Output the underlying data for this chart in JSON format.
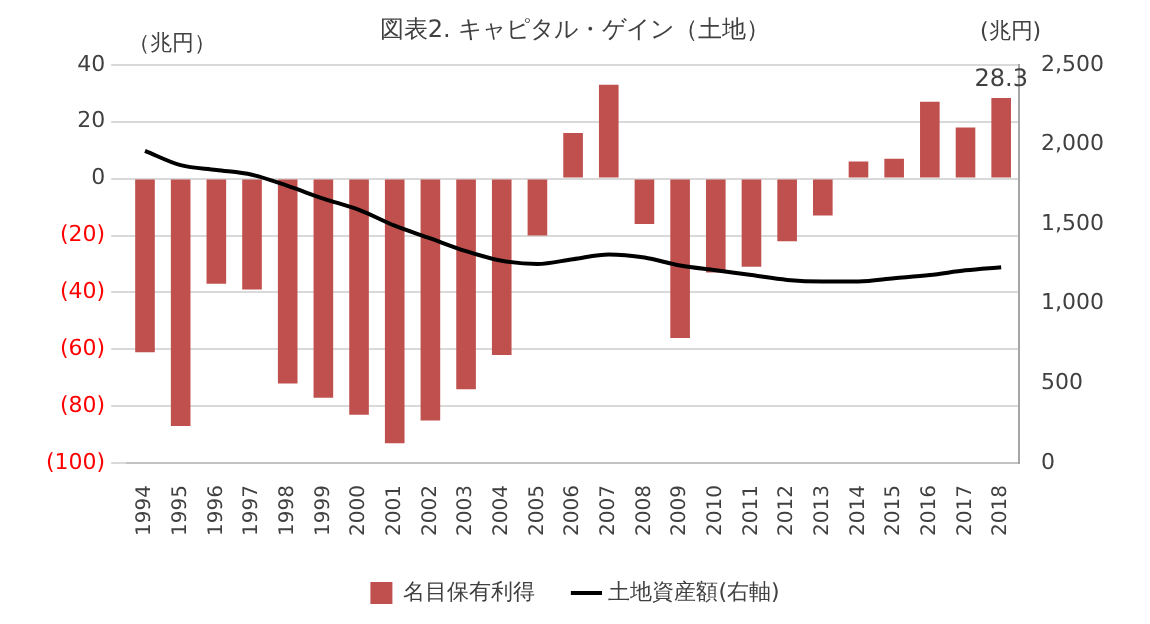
{
  "chart_data": {
    "type": "bar",
    "title": "図表2. キャピタル・ゲイン（土地）",
    "ylabel": "（兆円）",
    "y2label": "(兆円)",
    "categories": [
      "1994",
      "1995",
      "1996",
      "1997",
      "1998",
      "1999",
      "2000",
      "2001",
      "2002",
      "2003",
      "2004",
      "2005",
      "2006",
      "2007",
      "2008",
      "2009",
      "2010",
      "2011",
      "2012",
      "2013",
      "2014",
      "2015",
      "2016",
      "2017",
      "2018"
    ],
    "series": [
      {
        "name": "名目保有利得",
        "color": "#c0504d",
        "values": [
          -61,
          -87,
          -37,
          -39,
          -72,
          -77,
          -83,
          -93,
          -85,
          -74,
          -62,
          -20,
          16,
          33,
          -16,
          -56,
          -33,
          -31,
          -22,
          -13,
          6,
          7,
          27,
          18,
          28.3
        ],
        "value_labels": [
          null,
          null,
          null,
          null,
          null,
          null,
          null,
          null,
          null,
          null,
          null,
          null,
          null,
          null,
          null,
          null,
          null,
          null,
          null,
          null,
          null,
          null,
          null,
          null,
          "28.3"
        ]
      },
      {
        "name": "土地資産額(右軸)",
        "type": "line",
        "axis": "y2",
        "color": "#000000",
        "values": [
          1960,
          1870,
          1840,
          1810,
          1740,
          1660,
          1590,
          1490,
          1410,
          1330,
          1270,
          1250,
          1280,
          1310,
          1290,
          1240,
          1210,
          1180,
          1150,
          1140,
          1140,
          1160,
          1180,
          1210,
          1230
        ]
      }
    ],
    "ylim": [
      -100,
      40
    ],
    "yticks": [
      {
        "value": -100,
        "label": "(100)"
      },
      {
        "value": -80,
        "label": "(80)"
      },
      {
        "value": -60,
        "label": "(60)"
      },
      {
        "value": -40,
        "label": "(40)"
      },
      {
        "value": -20,
        "label": "(20)"
      },
      0,
      20,
      40
    ],
    "y2lim": [
      0,
      2500
    ],
    "y2ticks": [
      0,
      500,
      {
        "value": 1000,
        "label": "1,000"
      },
      {
        "value": 1500,
        "label": "1,500"
      },
      {
        "value": 2000,
        "label": "2,000"
      },
      {
        "value": 2500,
        "label": "2,500"
      }
    ],
    "grid": "y",
    "legend": "bottom",
    "marker": "none",
    "line_style": "solid"
  }
}
